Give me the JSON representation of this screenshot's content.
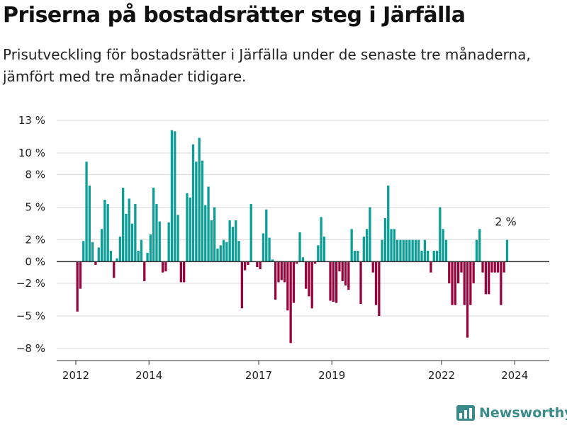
{
  "header": {
    "title": "Priserna på bostadsrätter steg i Järfälla",
    "subtitle": "Prisutveckling för bostadsrätter i Järfälla under de senaste tre månaderna, jämfört med tre månader tidigare."
  },
  "brand": {
    "name": "Newsworthy",
    "icon": "newsworthy-logo-icon",
    "color": "#3a8a8a"
  },
  "chart_data": {
    "type": "bar",
    "xlabel": "",
    "ylabel": "",
    "ylim": [
      -8,
      13
    ],
    "yticks": [
      {
        "value": 13,
        "label": "13 %"
      },
      {
        "value": 10,
        "label": "10 %"
      },
      {
        "value": 8,
        "label": "8 %"
      },
      {
        "value": 5,
        "label": "5 %"
      },
      {
        "value": 2,
        "label": "2 %"
      },
      {
        "value": 0,
        "label": "0 %"
      },
      {
        "value": -2,
        "label": "−2 %"
      },
      {
        "value": -5,
        "label": "−5 %"
      },
      {
        "value": -8,
        "label": "−8 %"
      }
    ],
    "xticks": [
      "2012",
      "2014",
      "2017",
      "2019",
      "2022",
      "2024"
    ],
    "start": "2012-01",
    "colors": {
      "positive": "#0c9e97",
      "negative": "#98053e"
    },
    "grid": true,
    "legend": "none",
    "annotation": {
      "text": "2 %",
      "target": "last"
    },
    "values": [
      -4.6,
      -2.5,
      1.9,
      9.2,
      7.0,
      1.8,
      -0.3,
      1.3,
      3.0,
      5.7,
      5.3,
      1.0,
      -1.5,
      0.3,
      2.3,
      6.8,
      4.4,
      5.8,
      3.5,
      5.3,
      1.0,
      2.0,
      -1.8,
      0.8,
      2.5,
      6.8,
      5.3,
      3.7,
      -1.0,
      -0.9,
      3.6,
      12.1,
      12.0,
      4.3,
      -1.9,
      -1.9,
      6.3,
      5.9,
      10.8,
      9.2,
      11.4,
      9.3,
      5.2,
      6.9,
      3.8,
      5.0,
      1.2,
      1.5,
      2.0,
      1.8,
      3.8,
      3.2,
      3.8,
      1.9,
      -4.3,
      -0.8,
      -0.3,
      5.3,
      0.0,
      -0.5,
      -0.7,
      2.6,
      4.8,
      2.2,
      0.2,
      -3.5,
      -1.9,
      -1.7,
      -1.9,
      -4.5,
      -7.5,
      -3.8,
      -0.2,
      2.7,
      0.4,
      -2.5,
      -3.2,
      -4.3,
      -0.2,
      1.5,
      4.1,
      2.3,
      0.0,
      -3.6,
      -3.7,
      -3.8,
      -0.9,
      -1.8,
      -2.2,
      -2.6,
      3.0,
      1.0,
      1.0,
      -3.9,
      2.3,
      3.0,
      5.0,
      -1.0,
      -4.0,
      -5.0,
      2.0,
      4.0,
      7.0,
      3.0,
      3.0,
      2.0,
      2.0,
      2.0,
      2.0,
      2.0,
      2.0,
      2.0,
      2.0,
      1.0,
      2.0,
      1.0,
      -1.0,
      1.0,
      1.0,
      5.0,
      3.0,
      2.0,
      -2.0,
      -4.0,
      -4.0,
      -2.0,
      -1.0,
      -4.0,
      -7.0,
      -4.0,
      -2.0,
      2.0,
      3.0,
      -1.0,
      -3.0,
      -3.0,
      -1.0,
      -1.0,
      -1.0,
      -4.0,
      -1.0,
      2.0
    ]
  }
}
